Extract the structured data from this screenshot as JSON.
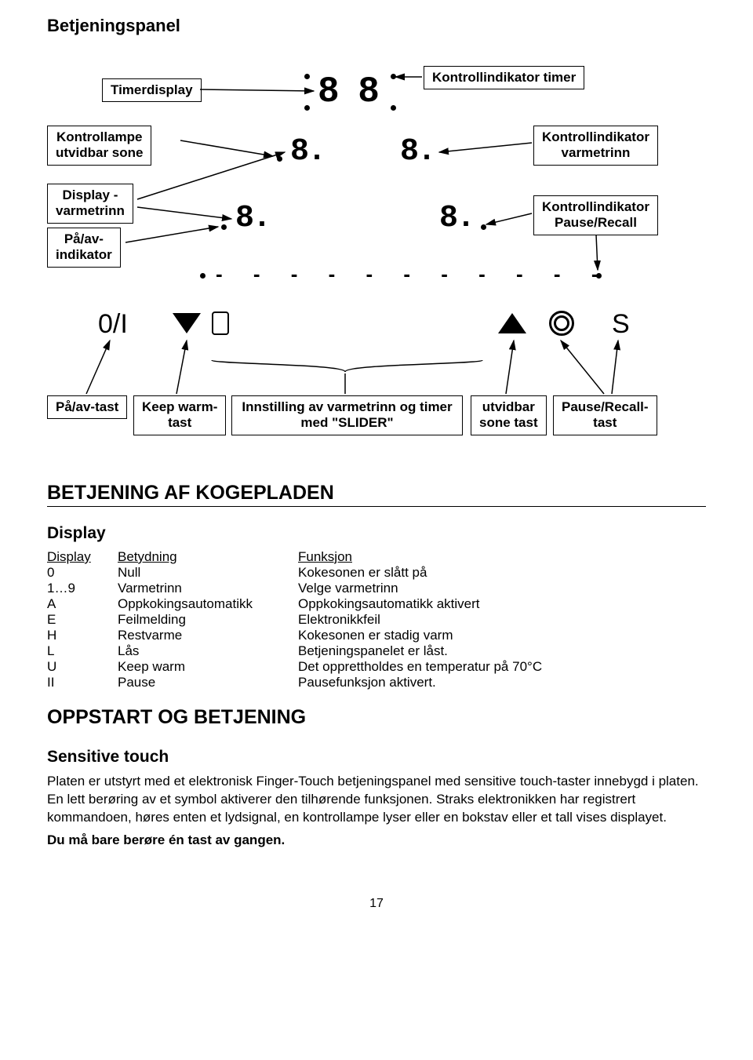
{
  "title": "Betjeningspanel",
  "labels": {
    "timerdisplay": "Timerdisplay",
    "kontrollampe_utvidbar_sone": "Kontrollampe\nutvidbar sone",
    "display_varmetrinn": "Display -\nvarmetrinn",
    "paa_av_indikator": "På/av-\nindikator",
    "kontrollindikator_timer": "Kontrollindikator timer",
    "kontrollindikator_varmetrinn": "Kontrollindikator\nvarmetrinn",
    "kontrollindikator_pause": "Kontrollindikator\nPause/Recall",
    "paa_av_tast": "På/av-tast",
    "keep_warm_tast": "Keep warm-\ntast",
    "slider": "Innstilling av varmetrinn og timer\nmed \"SLIDER\"",
    "utvidbar_sone_tast": "utvidbar\nsone tast",
    "pause_recall_tast": "Pause/Recall-\ntast"
  },
  "panel": {
    "seg_88": "8 8",
    "seg_8dot": "8.",
    "io": "0/I",
    "s": "S",
    "dashes": "- - - - - - - - - - -"
  },
  "section1": "BETJENING AF KOGEPLADEN",
  "display_heading": "Display",
  "table": {
    "h1": "Display",
    "h2": "Betydning",
    "h3": "Funksjon",
    "rows": [
      {
        "c1": "0",
        "c2": "Null",
        "c3": "Kokesonen er slått på"
      },
      {
        "c1": "1…9",
        "c2": "Varmetrinn",
        "c3": "Velge varmetrinn"
      },
      {
        "c1": "A",
        "c2": "Oppkokingsautomatikk",
        "c3": "Oppkokingsautomatikk aktivert"
      },
      {
        "c1": "E",
        "c2": "Feilmelding",
        "c3": "Elektronikkfeil"
      },
      {
        "c1": "H",
        "c2": "Restvarme",
        "c3": "Kokesonen er stadig varm"
      },
      {
        "c1": "L",
        "c2": "Lås",
        "c3": "Betjeningspanelet er låst."
      },
      {
        "c1": "U",
        "c2": "Keep warm",
        "c3": "Det opprettholdes en temperatur på 70°C"
      },
      {
        "c1": "II",
        "c2": "Pause",
        "c3": "Pausefunksjon aktivert."
      }
    ]
  },
  "section2": "OPPSTART OG BETJENING",
  "sensitive_heading": "Sensitive touch",
  "para1": "Platen er utstyrt med et elektronisk Finger-Touch betjeningspanel med sensitive touch-taster innebygd i platen. En lett berøring av et symbol aktiverer den tilhørende funksjonen. Straks elektronikken har registrert kommandoen, høres enten et lydsignal, en kontrollampe lyser eller en bokstav eller et tall vises displayet.",
  "para2": "Du må bare berøre én tast av gangen.",
  "pagenum": "17"
}
